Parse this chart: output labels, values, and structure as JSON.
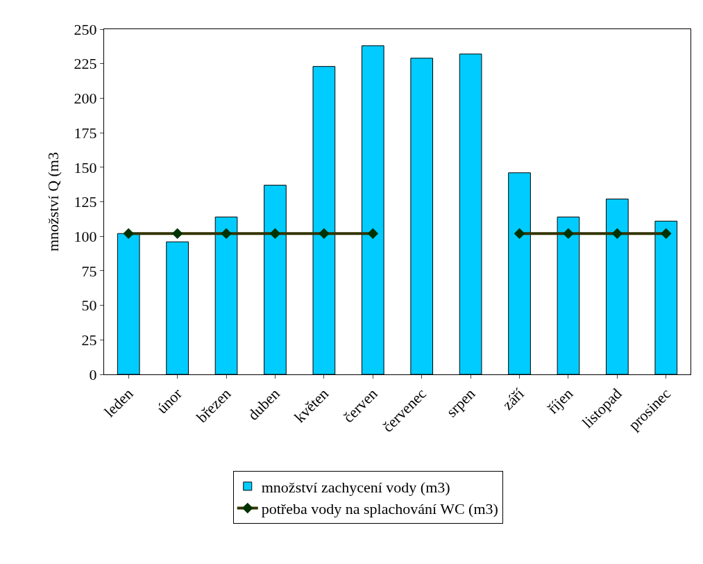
{
  "chart_data": {
    "type": "bar",
    "ylabel": "množství Q (m3",
    "categories": [
      "leden",
      "únor",
      "březen",
      "duben",
      "květen",
      "červen",
      "červenec",
      "srpen",
      "září",
      "říjen",
      "listopad",
      "prosinec"
    ],
    "series": [
      {
        "name": "množství zachycení vody (m3)",
        "color": "#00ccff",
        "values": [
          102,
          96,
          114,
          137,
          223,
          238,
          229,
          232,
          146,
          114,
          127,
          111
        ]
      },
      {
        "name": "potřeba vody na splachování WC (m3)",
        "type": "line",
        "color": "#333300",
        "marker": "diamond",
        "values": [
          102,
          102,
          102,
          102,
          102,
          102,
          null,
          null,
          102,
          102,
          102,
          102
        ]
      }
    ],
    "ylim": [
      0,
      250
    ],
    "yticks": [
      0,
      25,
      50,
      75,
      100,
      125,
      150,
      175,
      200,
      225,
      250
    ],
    "grid": false,
    "legend": "bottom"
  }
}
